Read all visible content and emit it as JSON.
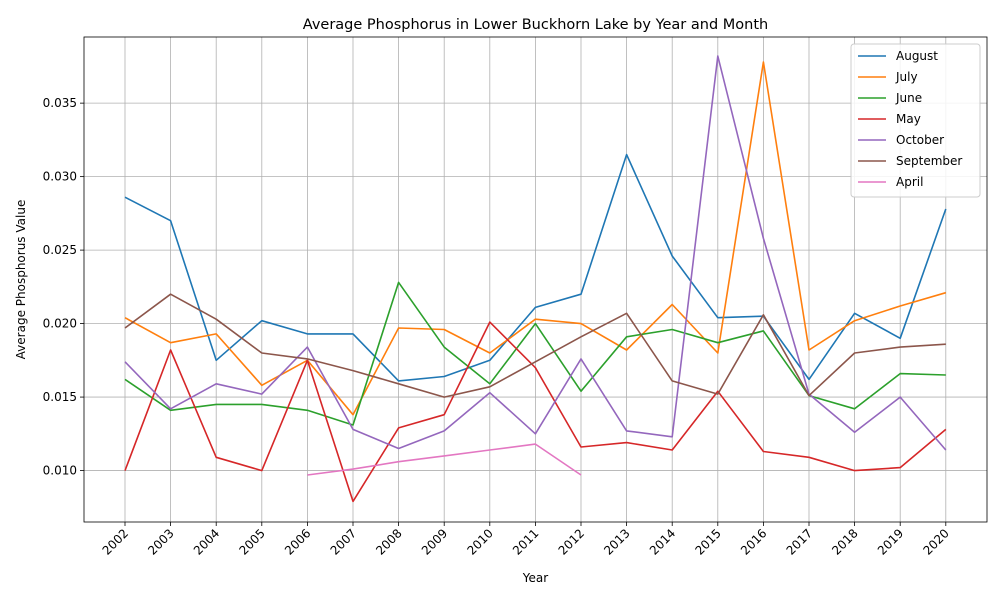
{
  "chart_data": {
    "type": "line",
    "title": "Average Phosphorus in Lower Buckhorn Lake by Year and Month",
    "xlabel": "Year",
    "ylabel": "Average Phosphorus Value",
    "x": [
      "2002",
      "2003",
      "2004",
      "2005",
      "2006",
      "2007",
      "2008",
      "2009",
      "2010",
      "2011",
      "2012",
      "2013",
      "2014",
      "2015",
      "2016",
      "2017",
      "2018",
      "2019",
      "2020"
    ],
    "ylim": [
      0.0065,
      0.0395
    ],
    "yticks": [
      "0.010",
      "0.015",
      "0.020",
      "0.025",
      "0.030",
      "0.035"
    ],
    "grid": true,
    "legend_position": "top-right",
    "series": [
      {
        "name": "August",
        "color": "#1f77b4",
        "values": [
          0.0286,
          0.027,
          0.0175,
          0.0202,
          0.0193,
          0.0193,
          0.0161,
          0.0164,
          0.0175,
          0.0211,
          0.022,
          0.0315,
          0.0246,
          0.0204,
          0.0205,
          0.0162,
          0.0207,
          0.019,
          0.0278
        ]
      },
      {
        "name": "July",
        "color": "#ff7f0e",
        "values": [
          0.0204,
          0.0187,
          0.0193,
          0.0158,
          0.0175,
          0.0138,
          0.0197,
          0.0196,
          0.018,
          0.0203,
          0.02,
          0.0182,
          0.0213,
          0.018,
          0.0378,
          0.0182,
          0.0202,
          0.0212,
          0.0221
        ]
      },
      {
        "name": "June",
        "color": "#2ca02c",
        "values": [
          0.0162,
          0.0141,
          0.0145,
          0.0145,
          0.0141,
          0.0131,
          0.0228,
          0.0184,
          0.0159,
          0.02,
          0.0154,
          0.0191,
          0.0196,
          0.0187,
          0.0195,
          0.0151,
          0.0142,
          0.0166,
          0.0165
        ]
      },
      {
        "name": "May",
        "color": "#d62728",
        "values": [
          0.01,
          0.0182,
          0.0109,
          0.01,
          0.0175,
          0.0079,
          0.0129,
          0.0138,
          0.0201,
          0.017,
          0.0116,
          0.0119,
          0.0114,
          0.0154,
          0.0113,
          0.0109,
          0.01,
          0.0102,
          0.0128
        ]
      },
      {
        "name": "October",
        "color": "#9467bd",
        "values": [
          0.0174,
          0.0142,
          0.0159,
          0.0152,
          0.0184,
          0.0128,
          0.0115,
          0.0127,
          0.0153,
          0.0125,
          0.0176,
          0.0127,
          0.0123,
          0.0382,
          0.0258,
          0.0152,
          0.0126,
          0.015,
          0.0114
        ]
      },
      {
        "name": "September",
        "color": "#8c564b",
        "values": [
          0.0197,
          0.022,
          0.0203,
          0.018,
          0.0176,
          0.0168,
          0.0159,
          0.015,
          0.0157,
          0.0174,
          0.0191,
          0.0207,
          0.0161,
          0.0152,
          0.0206,
          0.0151,
          0.018,
          0.0184,
          0.0186
        ]
      },
      {
        "name": "April",
        "color": "#e377c2",
        "values": [
          null,
          null,
          null,
          null,
          0.0097,
          0.0101,
          0.0106,
          0.011,
          0.0114,
          0.0118,
          0.0097,
          null,
          null,
          null,
          null,
          null,
          null,
          null,
          null
        ]
      }
    ]
  }
}
